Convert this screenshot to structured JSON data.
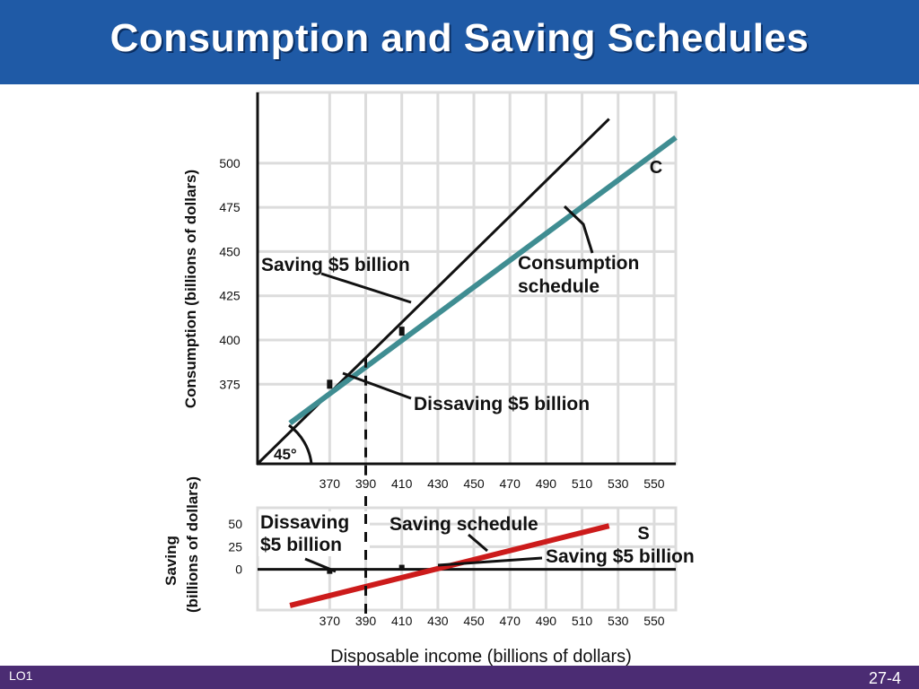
{
  "slide": {
    "title": "Consumption and Saving Schedules",
    "lo_label": "LO1",
    "page_number": "27-4",
    "colors": {
      "header": "#1f5aa6",
      "footer": "#4b2c73",
      "consumption_line": "#3f8d92",
      "saving_line": "#cc1b1b"
    }
  },
  "chart_data": [
    {
      "type": "line",
      "title": "Consumption schedule",
      "ylabel": "Consumption (billions of dollars)",
      "xlabel": "",
      "x_ticks": [
        370,
        390,
        410,
        430,
        450,
        470,
        490,
        510,
        530,
        550
      ],
      "y_ticks": [
        375,
        400,
        425,
        450,
        475,
        500
      ],
      "xlim": [
        330,
        562
      ],
      "ylim": [
        330,
        540
      ],
      "series": [
        {
          "name": "45° line",
          "x": [
            330,
            525
          ],
          "y": [
            330,
            525
          ]
        },
        {
          "name": "C",
          "x": [
            348,
            562
          ],
          "y": [
            353,
            514.5
          ]
        }
      ],
      "marks": [
        {
          "x": 370,
          "y": 375
        },
        {
          "x": 410,
          "y": 405
        }
      ],
      "break_even": {
        "x": 390,
        "y": 390
      },
      "annotations": {
        "series_label": "C",
        "schedule_label_line1": "Consumption",
        "schedule_label_line2": "schedule",
        "saving": "Saving $5 billion",
        "dissaving": "Dissaving $5 billion",
        "angle": "45°"
      }
    },
    {
      "type": "line",
      "title": "Saving schedule",
      "ylabel_line1": "Saving",
      "ylabel_line2": "(billions of dollars)",
      "xlabel": "Disposable income (billions of dollars)",
      "x_ticks": [
        370,
        390,
        410,
        430,
        450,
        470,
        490,
        510,
        530,
        550
      ],
      "y_ticks": [
        0,
        25,
        50
      ],
      "xlim": [
        330,
        562
      ],
      "ylim": [
        -45,
        68
      ],
      "series": [
        {
          "name": "S",
          "x": [
            348,
            525
          ],
          "y": [
            -40,
            48
          ]
        }
      ],
      "marks": [
        {
          "x": 370,
          "y": -5
        },
        {
          "x": 410,
          "y": 5
        }
      ],
      "annotations": {
        "series_label": "S",
        "schedule_label": "Saving schedule",
        "saving": "Saving $5 billion",
        "dissaving_line1": "Dissaving",
        "dissaving_line2": "$5 billion"
      }
    }
  ]
}
